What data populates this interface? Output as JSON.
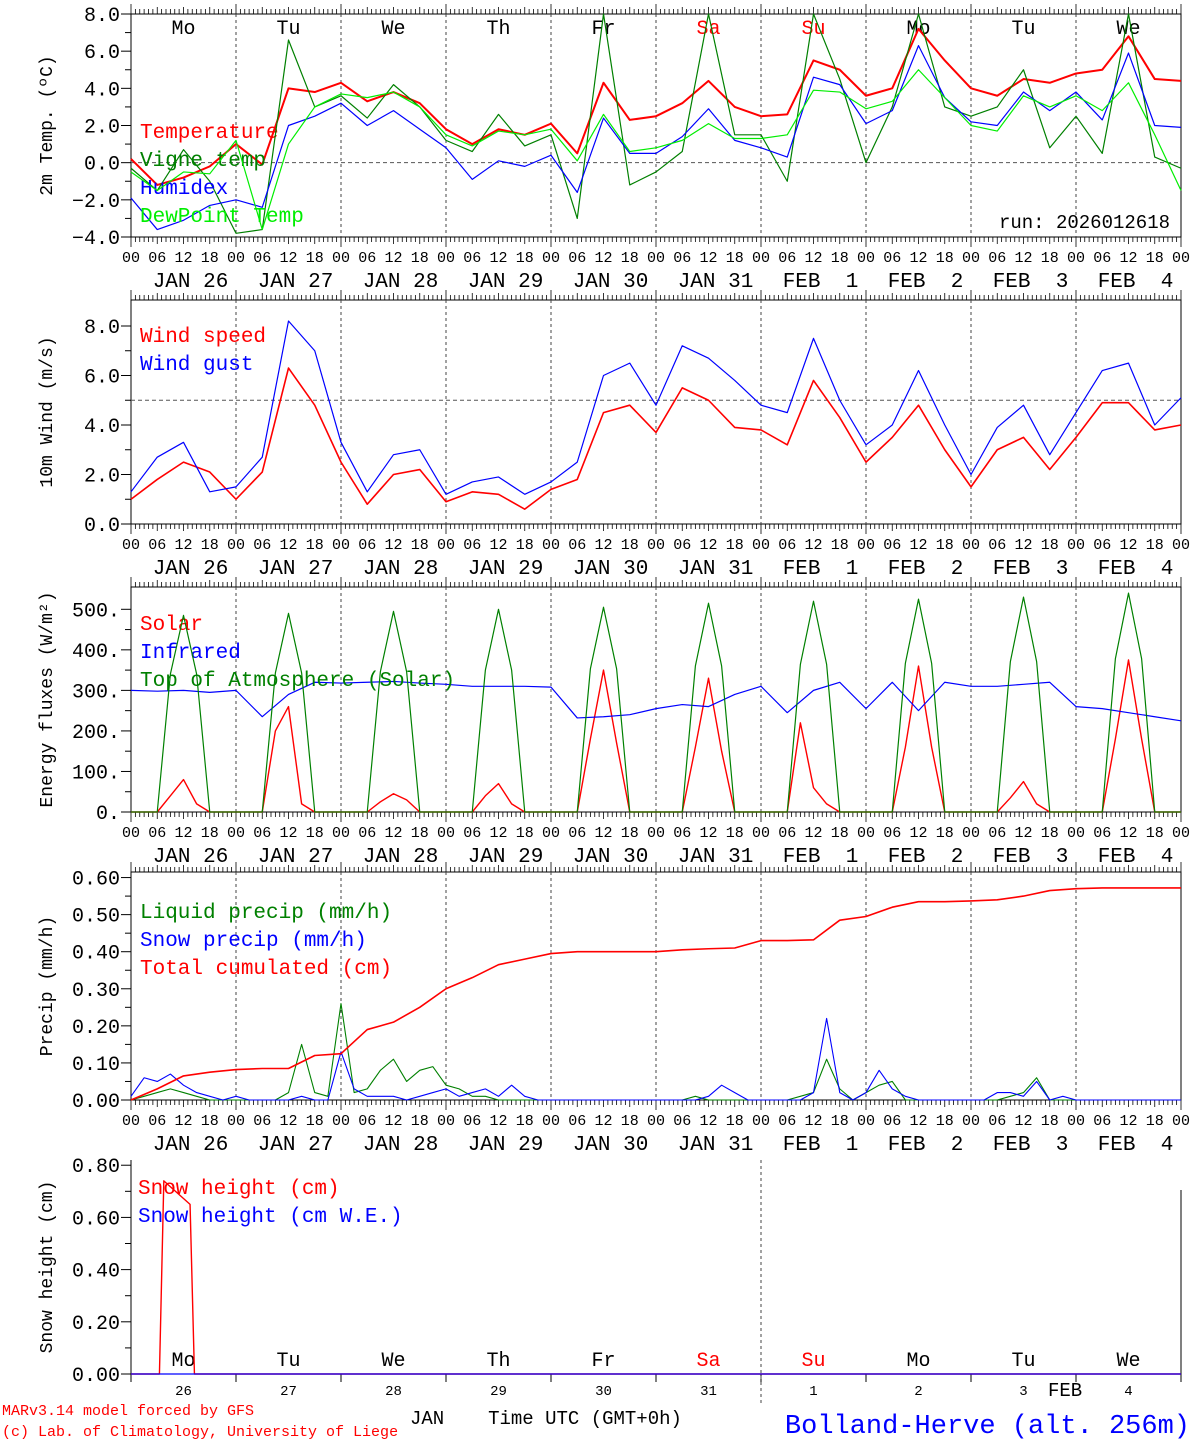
{
  "colors": {
    "red": "#ff0000",
    "blue": "#0000ff",
    "darkgreen": "#008000",
    "lightgreen": "#00ee00",
    "black": "#000000"
  },
  "x_axis": {
    "hour_labels": [
      "00",
      "06",
      "12",
      "18"
    ],
    "date_labels": [
      "JAN 26",
      "JAN 27",
      "JAN 28",
      "JAN 29",
      "JAN 30",
      "JAN 31",
      "FEB  1",
      "FEB  2",
      "FEB  3",
      "FEB  4"
    ],
    "day_names": [
      "Mo",
      "Tu",
      "We",
      "Th",
      "Fr",
      "Sa",
      "Su",
      "Mo",
      "Tu",
      "We"
    ],
    "day_name_colors": [
      "#000000",
      "#000000",
      "#000000",
      "#000000",
      "#000000",
      "#ff0000",
      "#ff0000",
      "#000000",
      "#000000",
      "#000000"
    ],
    "day_numbers": [
      "26",
      "27",
      "28",
      "29",
      "30",
      "31",
      "1",
      "2",
      "3",
      "4"
    ],
    "month_labels": [
      "JAN",
      "FEB"
    ],
    "title": "Time UTC (GMT+0h)",
    "range_hours": [
      0,
      240
    ]
  },
  "footer": {
    "model": "MARv3.14 model forced by GFS",
    "credit": "(c) Lab. of Climatology, University of Liege",
    "station": "Bolland-Herve (alt. 256m)"
  },
  "chart_data": [
    {
      "type": "line",
      "id": "temp",
      "ylabel": "2m Temp. (ºC)",
      "ylim": [
        -4,
        8
      ],
      "yticks": [
        -4,
        -2,
        0,
        2,
        4,
        6,
        8
      ],
      "ytick_labels": [
        "−4.0",
        "−2.0",
        "0.0",
        "2.0",
        "4.0",
        "6.0",
        "8.0"
      ],
      "ref_line": 0,
      "annotation": "run: 2026012618",
      "series": [
        {
          "name": "Temperature",
          "color": "#ff0000",
          "step_h": 6,
          "width": 2,
          "values": [
            0.2,
            -1.2,
            -0.8,
            -0.2,
            1.0,
            -0.1,
            4.0,
            3.8,
            4.3,
            3.3,
            3.8,
            3.2,
            1.8,
            1.0,
            1.8,
            1.5,
            2.1,
            0.5,
            4.3,
            2.3,
            2.5,
            3.2,
            4.4,
            3.0,
            2.5,
            2.6,
            5.5,
            5.0,
            3.6,
            4.0,
            7.2,
            5.5,
            4.0,
            3.6,
            4.5,
            4.3,
            4.8,
            5.0,
            6.8,
            4.5,
            4.4
          ]
        },
        {
          "name": "Vigne temp",
          "color": "#008000",
          "step_h": 6,
          "width": 1.2,
          "values": [
            -0.3,
            -1.5,
            0.7,
            -1.0,
            -3.8,
            -3.6,
            6.6,
            3.0,
            3.6,
            2.4,
            4.2,
            3.0,
            1.2,
            0.6,
            2.6,
            0.9,
            1.5,
            -3.0,
            8.0,
            -1.2,
            -0.5,
            0.6,
            8.0,
            1.5,
            1.5,
            -1.0,
            8.0,
            4.5,
            0.0,
            3.0,
            8.0,
            3.0,
            2.5,
            3.0,
            5.0,
            0.8,
            2.5,
            0.5,
            8.0,
            0.3,
            -0.3
          ]
        },
        {
          "name": "Humidex",
          "color": "#0000ff",
          "step_h": 6,
          "width": 1.2,
          "values": [
            -1.9,
            -3.6,
            -3.1,
            -2.3,
            -2.0,
            -2.4,
            2.0,
            2.5,
            3.2,
            2.0,
            2.8,
            1.8,
            0.8,
            -0.9,
            0.1,
            -0.2,
            0.4,
            -1.6,
            2.4,
            0.5,
            0.5,
            1.4,
            2.9,
            1.2,
            0.8,
            0.3,
            4.6,
            4.2,
            2.1,
            2.8,
            6.3,
            3.5,
            2.2,
            2.0,
            3.8,
            2.8,
            3.8,
            2.3,
            5.9,
            2.0,
            1.9
          ]
        },
        {
          "name": "DewPoint Temp",
          "color": "#00ee00",
          "step_h": 6,
          "width": 1.2,
          "values": [
            -0.5,
            -1.5,
            -0.5,
            -0.6,
            1.2,
            -3.6,
            1.0,
            3.0,
            3.7,
            3.5,
            3.8,
            3.0,
            1.5,
            0.9,
            1.7,
            1.5,
            1.8,
            0.1,
            2.6,
            0.6,
            0.8,
            1.2,
            2.1,
            1.3,
            1.3,
            1.5,
            3.9,
            3.8,
            2.9,
            3.3,
            5.0,
            3.5,
            2.0,
            1.7,
            3.6,
            3.0,
            3.6,
            2.8,
            4.3,
            1.5,
            -1.5
          ]
        }
      ]
    },
    {
      "type": "line",
      "id": "wind",
      "ylabel": "10m Wind (m/s)",
      "ylim": [
        0,
        9.05
      ],
      "yticks": [
        0,
        2,
        4,
        6,
        8
      ],
      "ytick_labels": [
        "0.0",
        "2.0",
        "4.0",
        "6.0",
        "8.0"
      ],
      "ref_line": 5,
      "series": [
        {
          "name": "Wind speed",
          "color": "#ff0000",
          "step_h": 6,
          "width": 1.6,
          "values": [
            1.0,
            1.8,
            2.5,
            2.1,
            1.0,
            2.1,
            6.3,
            4.8,
            2.5,
            0.8,
            2.0,
            2.2,
            0.9,
            1.3,
            1.2,
            0.6,
            1.4,
            1.8,
            4.5,
            4.8,
            3.7,
            5.5,
            5.0,
            3.9,
            3.8,
            3.2,
            5.8,
            4.3,
            2.5,
            3.5,
            4.8,
            3.0,
            1.5,
            3.0,
            3.5,
            2.2,
            3.5,
            4.9,
            4.9,
            3.8,
            4.0
          ]
        },
        {
          "name": "Wind gust",
          "color": "#0000ff",
          "step_h": 6,
          "width": 1.2,
          "values": [
            1.3,
            2.7,
            3.3,
            1.3,
            1.5,
            2.7,
            8.2,
            7.0,
            3.3,
            1.3,
            2.8,
            3.0,
            1.2,
            1.7,
            1.9,
            1.2,
            1.7,
            2.5,
            6.0,
            6.5,
            4.8,
            7.2,
            6.7,
            5.8,
            4.8,
            4.5,
            7.5,
            5.0,
            3.2,
            4.0,
            6.2,
            4.0,
            2.0,
            3.9,
            4.8,
            2.8,
            4.5,
            6.2,
            6.5,
            4.0,
            5.1
          ]
        }
      ]
    },
    {
      "type": "line",
      "id": "flux",
      "ylabel": "Energy fluxes (W/m²)",
      "ylim": [
        0,
        555
      ],
      "yticks": [
        0,
        100,
        200,
        300,
        400,
        500
      ],
      "ytick_labels": [
        "0.",
        "100.",
        "200.",
        "300.",
        "400.",
        "500."
      ],
      "series": [
        {
          "name": "Solar",
          "color": "#ff0000",
          "step_h": 3,
          "width": 1.4,
          "values": [
            0,
            0,
            0,
            40,
            80,
            20,
            0,
            0,
            0,
            0,
            0,
            200,
            260,
            20,
            0,
            0,
            0,
            0,
            0,
            25,
            45,
            30,
            0,
            0,
            0,
            0,
            0,
            40,
            70,
            20,
            0,
            0,
            0,
            0,
            0,
            180,
            350,
            170,
            0,
            0,
            0,
            0,
            0,
            160,
            330,
            150,
            0,
            0,
            0,
            0,
            0,
            220,
            60,
            20,
            0,
            0,
            0,
            0,
            0,
            160,
            360,
            160,
            0,
            0,
            0,
            0,
            0,
            35,
            75,
            20,
            0,
            0,
            0,
            0,
            0,
            180,
            375,
            180,
            0,
            0,
            0
          ]
        },
        {
          "name": "Infrared",
          "color": "#0000ff",
          "step_h": 6,
          "width": 1.2,
          "values": [
            300,
            298,
            300,
            295,
            300,
            235,
            290,
            320,
            318,
            320,
            322,
            318,
            315,
            310,
            310,
            310,
            308,
            232,
            235,
            240,
            255,
            265,
            260,
            290,
            310,
            245,
            300,
            320,
            255,
            320,
            250,
            320,
            310,
            310,
            315,
            320,
            260,
            255,
            245,
            235,
            225
          ]
        },
        {
          "name": "Top of Atmosphere (Solar)",
          "color": "#008000",
          "step_h": 3,
          "width": 1.2,
          "values": [
            0,
            0,
            0,
            340,
            485,
            340,
            0,
            0,
            0,
            0,
            0,
            343,
            490,
            343,
            0,
            0,
            0,
            0,
            0,
            346,
            495,
            346,
            0,
            0,
            0,
            0,
            0,
            350,
            500,
            350,
            0,
            0,
            0,
            0,
            0,
            353,
            505,
            353,
            0,
            0,
            0,
            0,
            0,
            360,
            515,
            360,
            0,
            0,
            0,
            0,
            0,
            364,
            520,
            364,
            0,
            0,
            0,
            0,
            0,
            367,
            525,
            367,
            0,
            0,
            0,
            0,
            0,
            371,
            530,
            371,
            0,
            0,
            0,
            0,
            0,
            378,
            540,
            378,
            0,
            0,
            0
          ]
        }
      ]
    },
    {
      "type": "line",
      "id": "precip",
      "ylabel": "Precip (mm/h)",
      "ylim": [
        0,
        0.615
      ],
      "yticks": [
        0,
        0.1,
        0.2,
        0.3,
        0.4,
        0.5,
        0.6
      ],
      "ytick_labels": [
        "0.00",
        "0.10",
        "0.20",
        "0.30",
        "0.40",
        "0.50",
        "0.60"
      ],
      "series": [
        {
          "name": "Liquid precip (mm/h)",
          "color": "#008000",
          "step_h": 3,
          "width": 1.1,
          "values": [
            0,
            0.01,
            0.02,
            0.03,
            0.02,
            0.01,
            0,
            0,
            0,
            0,
            0,
            0,
            0.02,
            0.15,
            0.02,
            0.01,
            0.26,
            0.02,
            0.03,
            0.08,
            0.11,
            0.05,
            0.08,
            0.09,
            0.04,
            0.03,
            0.01,
            0.01,
            0,
            0,
            0,
            0,
            0,
            0,
            0,
            0,
            0,
            0,
            0,
            0,
            0,
            0,
            0,
            0.01,
            0,
            0,
            0,
            0,
            0,
            0,
            0,
            0.01,
            0.02,
            0.11,
            0.03,
            0,
            0.02,
            0.04,
            0.05,
            0,
            0,
            0,
            0,
            0,
            0,
            0,
            0,
            0.01,
            0.02,
            0.06,
            0,
            0,
            0,
            0,
            0,
            0,
            0,
            0,
            0,
            0,
            0
          ]
        },
        {
          "name": "Snow precip (mm/h)",
          "color": "#0000ff",
          "step_h": 3,
          "width": 1.1,
          "values": [
            0.01,
            0.06,
            0.05,
            0.07,
            0.04,
            0.02,
            0.01,
            0,
            0.01,
            0,
            0,
            0,
            0,
            0.01,
            0,
            0,
            0.13,
            0.03,
            0.01,
            0.01,
            0.01,
            0,
            0.01,
            0.02,
            0.03,
            0.01,
            0.02,
            0.03,
            0.01,
            0.04,
            0.01,
            0,
            0,
            0,
            0,
            0,
            0,
            0,
            0,
            0,
            0,
            0,
            0,
            0,
            0.01,
            0.04,
            0.02,
            0,
            0,
            0,
            0,
            0,
            0.02,
            0.22,
            0.02,
            0,
            0.02,
            0.08,
            0.03,
            0.01,
            0,
            0,
            0,
            0,
            0,
            0,
            0.02,
            0.02,
            0.01,
            0.05,
            0,
            0.01,
            0,
            0,
            0,
            0,
            0,
            0,
            0,
            0,
            0
          ]
        },
        {
          "name": "Total cumulated (cm)",
          "color": "#ff0000",
          "step_h": 6,
          "width": 1.6,
          "values": [
            0,
            0.03,
            0.065,
            0.075,
            0.082,
            0.085,
            0.085,
            0.12,
            0.125,
            0.19,
            0.21,
            0.25,
            0.3,
            0.33,
            0.365,
            0.38,
            0.395,
            0.4,
            0.4,
            0.4,
            0.4,
            0.405,
            0.408,
            0.41,
            0.43,
            0.43,
            0.432,
            0.485,
            0.495,
            0.52,
            0.535,
            0.535,
            0.537,
            0.54,
            0.55,
            0.565,
            0.57,
            0.572,
            0.572,
            0.572,
            0.572
          ]
        }
      ]
    },
    {
      "type": "line",
      "id": "snow",
      "ylabel": "Snow height (cm)",
      "ylim": [
        0,
        0.82
      ],
      "yticks": [
        0,
        0.2,
        0.4,
        0.6,
        0.8
      ],
      "ytick_labels": [
        "0.00",
        "0.20",
        "0.40",
        "0.60",
        "0.80"
      ],
      "series": [
        {
          "name": "Snow height (cm)",
          "color": "#ff0000",
          "width": 1.4,
          "points": [
            [
              0,
              0
            ],
            [
              6.5,
              0
            ],
            [
              7.5,
              0.74
            ],
            [
              13.5,
              0.65
            ],
            [
              14.5,
              0
            ],
            [
              240,
              0
            ]
          ]
        },
        {
          "name": "Snow height (cm W.E.)",
          "color": "#0000ff",
          "width": 1.2,
          "points": [
            [
              0,
              0
            ],
            [
              240,
              0
            ]
          ]
        }
      ]
    }
  ]
}
